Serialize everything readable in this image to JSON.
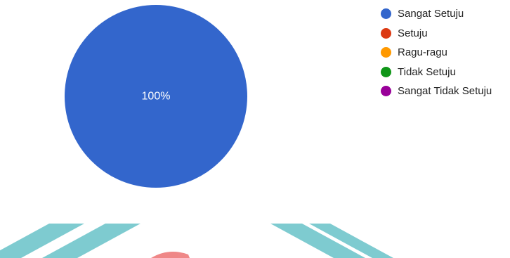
{
  "chart_data": {
    "type": "pie",
    "categories": [
      "Sangat Setuju",
      "Setuju",
      "Ragu-ragu",
      "Tidak Setuju",
      "Sangat Tidak Setuju"
    ],
    "values": [
      100,
      0,
      0,
      0,
      0
    ],
    "slice_labels": [
      "100%"
    ],
    "colors": [
      "#3366cc",
      "#dc3912",
      "#ff9900",
      "#109618",
      "#990099"
    ],
    "legend_position": "top-right"
  },
  "watermark": {
    "colors": [
      "#2aa9b2",
      "#e53939"
    ]
  }
}
